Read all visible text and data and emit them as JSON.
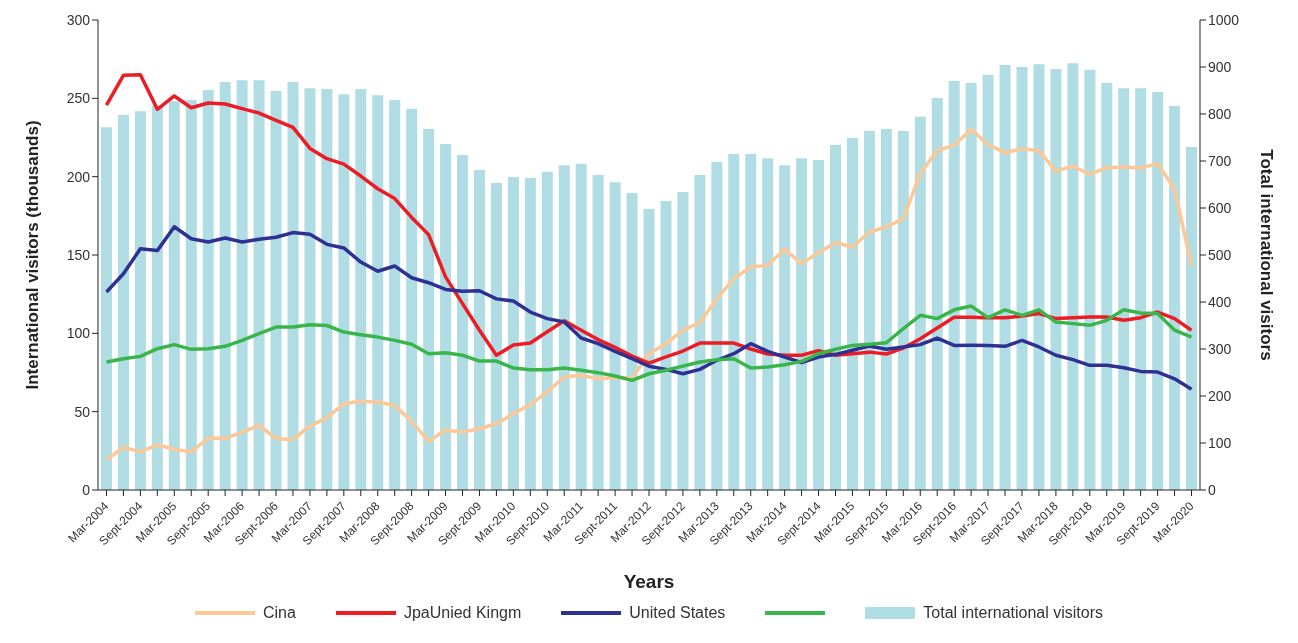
{
  "chart_data": {
    "type": "line",
    "xlabel": "Years",
    "ylabel": "International visitors (thousands)",
    "y2label": "Total international visitors",
    "categories": [
      "Mar-2004",
      null,
      "Sept-2004",
      null,
      "Mar-2005",
      null,
      "Sept-2005",
      null,
      "Mar-2006",
      null,
      "Sept-2006",
      null,
      "Mar-2007",
      null,
      "Sept-2007",
      null,
      "Mar-2008",
      null,
      "Sept-2008",
      null,
      "Mar-2009",
      null,
      "Sept-2009",
      null,
      "Mar-2010",
      null,
      "Sept-2010",
      null,
      "Mar-2011",
      null,
      "Sept-2011",
      null,
      "Mar-2012",
      null,
      "Sept-2012",
      null,
      "Mar-2013",
      null,
      "Sept-2013",
      null,
      "Mar-2014",
      null,
      "Sept-2014",
      null,
      "Mar-2015",
      null,
      "Sept-2015",
      null,
      "Mar-2016",
      null,
      "Sept-2016",
      null,
      "Mar-2017",
      null,
      "Sept-2017",
      null,
      "Mar-2018",
      null,
      "Sept-2018",
      null,
      "Mar-2019",
      null,
      "Sept-2019",
      null,
      "Mar-2020"
    ],
    "series": [
      {
        "name": "Total international visitors",
        "type": "bar",
        "axis": "y2",
        "color": "#b0dde4",
        "values": [
          772,
          798,
          806,
          818,
          827,
          830,
          851,
          868,
          872,
          872,
          849,
          868,
          855,
          853,
          842,
          853,
          840,
          830,
          811,
          768,
          736,
          713,
          681,
          653,
          666,
          664,
          677,
          691,
          694,
          670,
          655,
          632,
          598,
          615,
          634,
          670,
          698,
          715,
          715,
          706,
          691,
          706,
          702,
          734,
          749,
          764,
          768,
          764,
          794,
          834,
          870,
          866,
          883,
          904,
          900,
          906,
          896,
          908,
          894,
          866,
          855,
          855,
          847,
          817,
          730
        ]
      },
      {
        "name": "Cina",
        "color": "#fdc897",
        "values": [
          19,
          27.4,
          24.3,
          28.9,
          26,
          24.3,
          33.2,
          32.8,
          37,
          41.3,
          32.8,
          32.1,
          40.9,
          46,
          55.1,
          56.6,
          56.2,
          54,
          43.8,
          31.1,
          38.1,
          37,
          39.1,
          42.3,
          48.7,
          54.5,
          62.6,
          72.1,
          73.2,
          71,
          71.7,
          71.5,
          87,
          93.4,
          102,
          106.8,
          122,
          134.9,
          142.3,
          143.4,
          153.6,
          144.5,
          151.5,
          158,
          155.1,
          164.7,
          167.9,
          173.2,
          201.9,
          216.8,
          220,
          230.2,
          220.4,
          215.3,
          217.9,
          216.6,
          203.4,
          206.8,
          201.5,
          205.7,
          206.2,
          205.5,
          208.3,
          192.3,
          143
        ]
      },
      {
        "name": "JpaUnied Kingm",
        "color": "#ed1c24",
        "values": [
          245.6,
          264.7,
          265,
          243,
          251.5,
          244,
          247,
          246.4,
          243.4,
          240.6,
          236,
          231.5,
          218,
          211.5,
          208,
          200.4,
          192.3,
          186,
          174,
          163,
          136,
          119,
          102,
          86,
          92.5,
          93.8,
          101,
          108,
          102,
          96,
          91,
          85.5,
          81,
          85,
          88.7,
          93.8,
          93.8,
          93.8,
          90,
          86.8,
          86,
          86,
          89,
          86,
          87,
          88,
          86.8,
          90.6,
          96.6,
          103.4,
          110.2,
          110.2,
          110,
          110,
          111,
          112.6,
          109.4,
          110,
          110.4,
          110.4,
          108.3,
          110,
          113.6,
          109.4,
          102
        ]
      },
      {
        "name": "United States",
        "color": "#2e3192",
        "values": [
          126.4,
          138,
          154,
          152.8,
          168,
          160.4,
          158.3,
          160.8,
          158.3,
          160,
          161.3,
          164.3,
          163.2,
          156.8,
          154.5,
          145.5,
          139.6,
          143,
          135.5,
          132.3,
          128,
          126.8,
          127.2,
          122,
          120.6,
          113.6,
          109.4,
          107.2,
          97,
          93.4,
          88.5,
          83.8,
          79,
          77,
          74.2,
          77,
          82.8,
          87,
          93.4,
          88.5,
          84.9,
          81.3,
          84.9,
          86.6,
          89.2,
          91.9,
          89.8,
          91.3,
          92.8,
          97,
          92.3,
          92.4,
          92.3,
          91.7,
          95.5,
          91.3,
          86,
          83.2,
          79.6,
          79.6,
          78,
          75.7,
          75.3,
          71,
          64.3
        ]
      },
      {
        "color": "#39b54a",
        "values": [
          81.7,
          83.8,
          85.3,
          90.2,
          92.8,
          89.8,
          90.2,
          91.7,
          95.5,
          99.8,
          104,
          104,
          105.5,
          105,
          100.8,
          99.1,
          97.6,
          95.5,
          93,
          87,
          87.6,
          86,
          82.3,
          82.3,
          77.9,
          76.8,
          76.8,
          77.9,
          76.4,
          74.9,
          72.8,
          70,
          74.2,
          76.4,
          79.1,
          81.7,
          83.2,
          83.8,
          77.9,
          78.5,
          80,
          82.1,
          87,
          89.8,
          92.3,
          93,
          94,
          103,
          111.5,
          109.4,
          115,
          117.4,
          110,
          115,
          111.5,
          115,
          107.2,
          106.2,
          105.1,
          108.3,
          115,
          113,
          112.6,
          102,
          97.6
        ]
      }
    ],
    "ylim": [
      0,
      300
    ],
    "yticks": [
      0,
      50,
      100,
      150,
      200,
      250,
      300
    ],
    "y2lim": [
      0,
      1000
    ],
    "y2ticks": [
      0,
      100,
      200,
      300,
      400,
      500,
      600,
      700,
      800,
      900,
      1000
    ],
    "grid": false,
    "legend": "bottom",
    "marker": "none",
    "line_style": "solid"
  }
}
